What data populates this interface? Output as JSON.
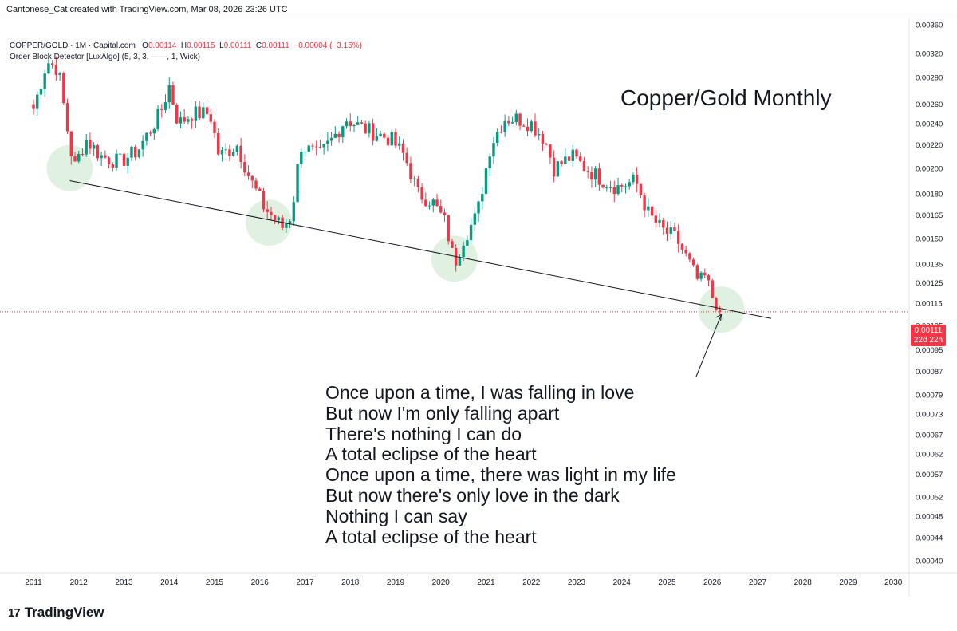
{
  "header": {
    "credit": "Cantonese_Cat created with TradingView.com, Mar 08, 2026 23:26 UTC"
  },
  "legend": {
    "symbol": "COPPER/GOLD · 1M · Capital.com",
    "o_label": "O",
    "o_value": "0.00114",
    "h_label": "H",
    "h_value": "0.00115",
    "l_label": "L",
    "l_value": "0.00111",
    "c_label": "C",
    "c_value": "0.00111",
    "change": "−0.00004 (−3.15%)",
    "indicator": "Order Block Detector [LuxAlgo] (5, 3, 3, ——, 1, Wick)"
  },
  "annotation": {
    "title": "Copper/Gold Monthly",
    "lyrics": [
      "Once upon a time, I was falling in love",
      "But now I'm only falling apart",
      "There's nothing I can do",
      "A total eclipse of the heart",
      "Once upon a time, there was light in my life",
      "But now there's only love in the dark",
      "Nothing I can say",
      "A total eclipse of the heart"
    ]
  },
  "price_badge": {
    "price": "0.00111",
    "countdown": "22d 22h"
  },
  "branding": {
    "logo": "17",
    "name": "TradingView"
  },
  "colors": {
    "up": "#089981",
    "down": "#f23645",
    "circle_fill": "#c8e6c9",
    "trendline": "#131722",
    "price_line": "#f23645"
  },
  "chart_data": {
    "type": "candlestick",
    "scale": "log",
    "timeframe": "1M",
    "y_ticks": [
      "0.00360",
      "0.00320",
      "0.00290",
      "0.00260",
      "0.00240",
      "0.00220",
      "0.00200",
      "0.00180",
      "0.00165",
      "0.00150",
      "0.00135",
      "0.00125",
      "0.00115",
      "0.00105",
      "0.00095",
      "0.00087",
      "0.00079",
      "0.00073",
      "0.00067",
      "0.00062",
      "0.00057",
      "0.00052",
      "0.00048",
      "0.00044",
      "0.00040"
    ],
    "x_ticks": [
      "2011",
      "2012",
      "2013",
      "2014",
      "2015",
      "2016",
      "2017",
      "2018",
      "2019",
      "2020",
      "2021",
      "2022",
      "2023",
      "2024",
      "2025",
      "2026",
      "2027",
      "2028",
      "2029",
      "2030"
    ],
    "last_price": 0.00111,
    "anchors": [
      {
        "date": "2011.0",
        "value": 0.00255
      },
      {
        "date": "2011.3",
        "value": 0.0031
      },
      {
        "date": "2011.55",
        "value": 0.003
      },
      {
        "date": "2011.8",
        "value": 0.0022
      },
      {
        "date": "2011.9",
        "value": 0.002
      },
      {
        "date": "2012.15",
        "value": 0.00225
      },
      {
        "date": "2012.5",
        "value": 0.0021
      },
      {
        "date": "2012.9",
        "value": 0.00205
      },
      {
        "date": "2013.3",
        "value": 0.00215
      },
      {
        "date": "2013.8",
        "value": 0.0025
      },
      {
        "date": "2014.0",
        "value": 0.0028
      },
      {
        "date": "2014.2",
        "value": 0.0024
      },
      {
        "date": "2014.5",
        "value": 0.0025
      },
      {
        "date": "2014.9",
        "value": 0.0025
      },
      {
        "date": "2015.1",
        "value": 0.0021
      },
      {
        "date": "2015.5",
        "value": 0.0022
      },
      {
        "date": "2015.8",
        "value": 0.0019
      },
      {
        "date": "2016.1",
        "value": 0.0017
      },
      {
        "date": "2016.5",
        "value": 0.00157
      },
      {
        "date": "2016.7",
        "value": 0.00165
      },
      {
        "date": "2016.9",
        "value": 0.0022
      },
      {
        "date": "2017.3",
        "value": 0.0021
      },
      {
        "date": "2017.6",
        "value": 0.00225
      },
      {
        "date": "2017.9",
        "value": 0.00245
      },
      {
        "date": "2018.3",
        "value": 0.00235
      },
      {
        "date": "2018.6",
        "value": 0.0023
      },
      {
        "date": "2018.9",
        "value": 0.00225
      },
      {
        "date": "2019.2",
        "value": 0.0021
      },
      {
        "date": "2019.5",
        "value": 0.0018
      },
      {
        "date": "2019.8",
        "value": 0.00175
      },
      {
        "date": "2020.1",
        "value": 0.0016
      },
      {
        "date": "2020.3",
        "value": 0.00135
      },
      {
        "date": "2020.5",
        "value": 0.0015
      },
      {
        "date": "2020.8",
        "value": 0.00165
      },
      {
        "date": "2021.1",
        "value": 0.0022
      },
      {
        "date": "2021.4",
        "value": 0.00245
      },
      {
        "date": "2021.7",
        "value": 0.00245
      },
      {
        "date": "2022.0",
        "value": 0.0024
      },
      {
        "date": "2022.3",
        "value": 0.00225
      },
      {
        "date": "2022.5",
        "value": 0.002
      },
      {
        "date": "2022.9",
        "value": 0.0021
      },
      {
        "date": "2023.2",
        "value": 0.002
      },
      {
        "date": "2023.6",
        "value": 0.0019
      },
      {
        "date": "2023.9",
        "value": 0.00185
      },
      {
        "date": "2024.3",
        "value": 0.0019
      },
      {
        "date": "2024.6",
        "value": 0.00165
      },
      {
        "date": "2024.9",
        "value": 0.00155
      },
      {
        "date": "2025.2",
        "value": 0.0015
      },
      {
        "date": "2025.4",
        "value": 0.0014
      },
      {
        "date": "2025.7",
        "value": 0.00125
      },
      {
        "date": "2025.85",
        "value": 0.00128
      },
      {
        "date": "2026.0",
        "value": 0.00118
      },
      {
        "date": "2026.2",
        "value": 0.00111
      }
    ],
    "trendline": [
      {
        "date": "2011.8",
        "value": 0.0019
      },
      {
        "date": "2027.3",
        "value": 0.00108
      }
    ],
    "highlighted_lows": [
      {
        "date": "2011.8",
        "value": 0.002
      },
      {
        "date": "2016.2",
        "value": 0.0016
      },
      {
        "date": "2020.3",
        "value": 0.00138
      },
      {
        "date": "2026.2",
        "value": 0.00112
      }
    ]
  }
}
